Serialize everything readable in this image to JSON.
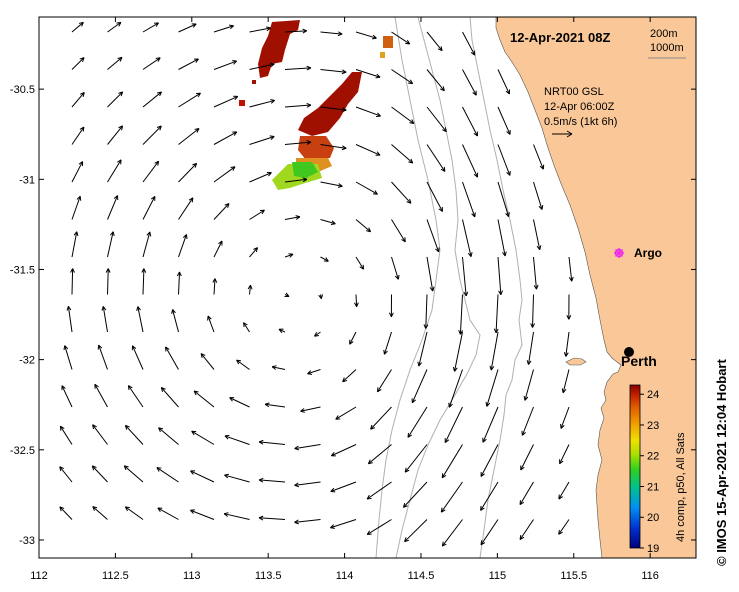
{
  "map": {
    "title": "12-Apr-2021 08Z",
    "lon_range": [
      112,
      116.3
    ],
    "lat_range": [
      -33.1,
      -30.1
    ],
    "x_ticks": [
      {
        "value": 112,
        "label": "112"
      },
      {
        "value": 112.5,
        "label": "112.5"
      },
      {
        "value": 113,
        "label": "113"
      },
      {
        "value": 113.5,
        "label": "113.5"
      },
      {
        "value": 114,
        "label": "114"
      },
      {
        "value": 114.5,
        "label": "114.5"
      },
      {
        "value": 115,
        "label": "115"
      },
      {
        "value": 115.5,
        "label": "115.5"
      },
      {
        "value": 116,
        "label": "116"
      }
    ],
    "y_ticks": [
      {
        "value": -30.5,
        "label": "-30.5"
      },
      {
        "value": -31,
        "label": "-31"
      },
      {
        "value": -31.5,
        "label": "-31.5"
      },
      {
        "value": -32,
        "label": "-32"
      },
      {
        "value": -32.5,
        "label": "-32.5"
      },
      {
        "value": -33,
        "label": "-33"
      }
    ],
    "isobath_legend": {
      "line1": "200m",
      "line2": "1000m"
    },
    "current_legend": {
      "product": "NRT00 GSL",
      "time": "12-Apr 06:00Z",
      "scale": "0.5m/s (1kt 6h)",
      "scale_speed_ms": 0.5
    },
    "places": [
      {
        "name": "Argo",
        "lon": 115.78,
        "lat": -31.39,
        "marker": "argo-float",
        "color": "#ee22ee"
      },
      {
        "name": "Perth",
        "lon": 115.86,
        "lat": -31.95,
        "marker": "city-dot",
        "color": "#000000"
      }
    ],
    "colorbar": {
      "label": "4h comp, p50, All Sats",
      "min": 19,
      "max": 24.3,
      "ticks": [
        {
          "value": 19,
          "label": "19"
        },
        {
          "value": 20,
          "label": "20"
        },
        {
          "value": 21,
          "label": "21"
        },
        {
          "value": 22,
          "label": "22"
        },
        {
          "value": 23,
          "label": "23"
        },
        {
          "value": 24,
          "label": "24"
        }
      ]
    },
    "credit": "© IMOS 15-Apr-2021 12:04 Hobart",
    "colors": {
      "land": "#fac898",
      "isobath": "#b0b0b0",
      "arrow": "#000000"
    }
  }
}
